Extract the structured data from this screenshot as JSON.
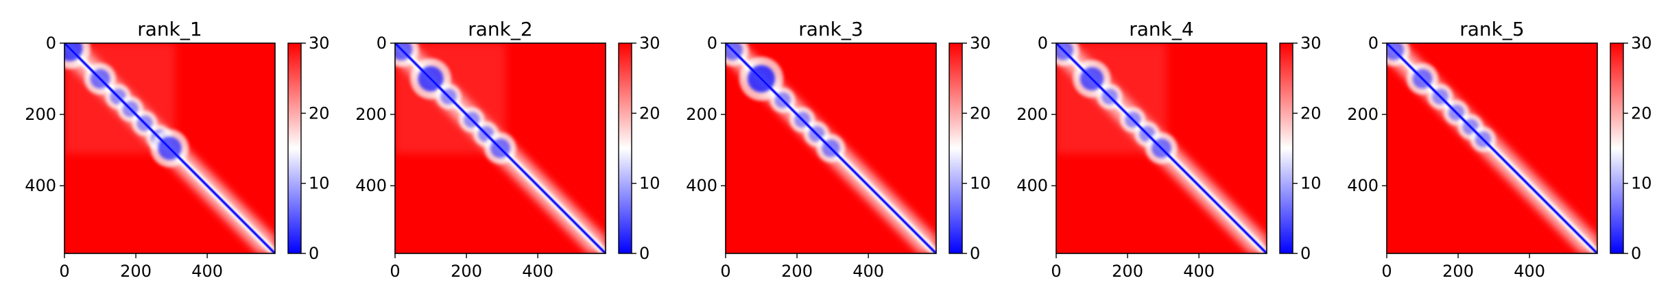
{
  "chart_data": [
    {
      "type": "heatmap",
      "title": "rank_1",
      "xlabel": "",
      "ylabel": "",
      "extent": [
        0,
        590
      ],
      "xticks": [
        0,
        200,
        400
      ],
      "yticks": [
        0,
        200,
        400
      ],
      "colorbar": {
        "min": 0,
        "max": 30,
        "ticks": [
          0,
          10,
          20,
          30
        ],
        "colormap": "bwr"
      },
      "diagonal_clusters": [
        [
          15,
          0.9
        ],
        [
          100,
          0.6
        ],
        [
          150,
          0.4
        ],
        [
          185,
          0.4
        ],
        [
          225,
          0.4
        ],
        [
          265,
          0.4
        ],
        [
          295,
          0.8
        ]
      ],
      "block_boundary": 310
    },
    {
      "type": "heatmap",
      "title": "rank_2",
      "xlabel": "",
      "ylabel": "",
      "extent": [
        0,
        590
      ],
      "xticks": [
        0,
        200,
        400
      ],
      "yticks": [
        0,
        200,
        400
      ],
      "colorbar": {
        "min": 0,
        "max": 30,
        "ticks": [
          0,
          10,
          20,
          30
        ],
        "colormap": "bwr"
      },
      "diagonal_clusters": [
        [
          18,
          0.7
        ],
        [
          100,
          0.9
        ],
        [
          150,
          0.4
        ],
        [
          215,
          0.4
        ],
        [
          255,
          0.4
        ],
        [
          295,
          0.6
        ]
      ],
      "block_boundary": 310
    },
    {
      "type": "heatmap",
      "title": "rank_3",
      "xlabel": "",
      "ylabel": "",
      "extent": [
        0,
        590
      ],
      "xticks": [
        0,
        200,
        400
      ],
      "yticks": [
        0,
        200,
        400
      ],
      "colorbar": {
        "min": 0,
        "max": 30,
        "ticks": [
          0,
          10,
          20,
          30
        ],
        "colormap": "bwr"
      },
      "diagonal_clusters": [
        [
          20,
          0.6
        ],
        [
          100,
          1.0
        ],
        [
          160,
          0.4
        ],
        [
          215,
          0.4
        ],
        [
          255,
          0.4
        ],
        [
          295,
          0.5
        ]
      ],
      "block_boundary": 0
    },
    {
      "type": "heatmap",
      "title": "rank_4",
      "xlabel": "",
      "ylabel": "",
      "extent": [
        0,
        590
      ],
      "xticks": [
        0,
        200,
        400
      ],
      "yticks": [
        0,
        200,
        400
      ],
      "colorbar": {
        "min": 0,
        "max": 30,
        "ticks": [
          0,
          10,
          20,
          30
        ],
        "colormap": "bwr"
      },
      "diagonal_clusters": [
        [
          20,
          0.6
        ],
        [
          100,
          0.8
        ],
        [
          150,
          0.4
        ],
        [
          215,
          0.4
        ],
        [
          255,
          0.4
        ],
        [
          295,
          0.6
        ]
      ],
      "block_boundary": 310
    },
    {
      "type": "heatmap",
      "title": "rank_5",
      "xlabel": "",
      "ylabel": "",
      "extent": [
        0,
        590
      ],
      "xticks": [
        0,
        200,
        400
      ],
      "yticks": [
        0,
        200,
        400
      ],
      "colorbar": {
        "min": 0,
        "max": 30,
        "ticks": [
          0,
          10,
          20,
          30
        ],
        "colormap": "bwr"
      },
      "diagonal_clusters": [
        [
          20,
          0.6
        ],
        [
          100,
          0.6
        ],
        [
          150,
          0.4
        ],
        [
          195,
          0.4
        ],
        [
          235,
          0.4
        ],
        [
          270,
          0.4
        ]
      ],
      "block_boundary": 0
    }
  ],
  "colors": {
    "high": "#ff0000",
    "mid": "#ffffff",
    "low": "#0000ff"
  }
}
